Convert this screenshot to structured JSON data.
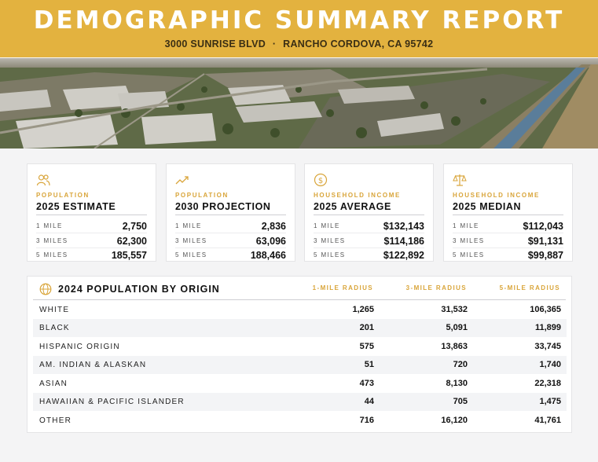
{
  "header": {
    "title": "DEMOGRAPHIC SUMMARY REPORT",
    "address": "3000 SUNRISE BLVD",
    "separator": "·",
    "city": "RANCHO CORDOVA, CA 95742"
  },
  "colors": {
    "accent": "#e3b23f",
    "label_gold": "#d9a53a",
    "dark": "#1b1b1b"
  },
  "cards": [
    {
      "icon": "people-icon",
      "category": "POPULATION",
      "heading": "2025 ESTIMATE",
      "rows": [
        {
          "label": "1 MILE",
          "value": "2,750"
        },
        {
          "label": "3 MILES",
          "value": "62,300"
        },
        {
          "label": "5 MILES",
          "value": "185,557"
        }
      ]
    },
    {
      "icon": "trend-up-icon",
      "category": "POPULATION",
      "heading": "2030 PROJECTION",
      "rows": [
        {
          "label": "1 MILE",
          "value": "2,836"
        },
        {
          "label": "3 MILES",
          "value": "63,096"
        },
        {
          "label": "5 MILES",
          "value": "188,466"
        }
      ]
    },
    {
      "icon": "dollar-icon",
      "category": "HOUSEHOLD INCOME",
      "heading": "2025 AVERAGE",
      "rows": [
        {
          "label": "1 MILE",
          "value": "$132,143"
        },
        {
          "label": "3 MILES",
          "value": "$114,186"
        },
        {
          "label": "5 MILES",
          "value": "$122,892"
        }
      ]
    },
    {
      "icon": "scale-icon",
      "category": "HOUSEHOLD INCOME",
      "heading": "2025 MEDIAN",
      "rows": [
        {
          "label": "1 MILE",
          "value": "$112,043"
        },
        {
          "label": "3 MILES",
          "value": "$91,131"
        },
        {
          "label": "5 MILES",
          "value": "$99,887"
        }
      ]
    }
  ],
  "origin_table": {
    "icon": "globe-icon",
    "title": "2024 POPULATION BY ORIGIN",
    "columns": [
      "1-MILE RADIUS",
      "3-MILE RADIUS",
      "5-MILE RADIUS"
    ],
    "rows": [
      {
        "name": "WHITE",
        "values": [
          "1,265",
          "31,532",
          "106,365"
        ]
      },
      {
        "name": "BLACK",
        "values": [
          "201",
          "5,091",
          "11,899"
        ]
      },
      {
        "name": "HISPANIC ORIGIN",
        "values": [
          "575",
          "13,863",
          "33,745"
        ]
      },
      {
        "name": "AM. INDIAN & ALASKAN",
        "values": [
          "51",
          "720",
          "1,740"
        ]
      },
      {
        "name": "ASIAN",
        "values": [
          "473",
          "8,130",
          "22,318"
        ]
      },
      {
        "name": "HAWAIIAN & PACIFIC ISLANDER",
        "values": [
          "44",
          "705",
          "1,475"
        ]
      },
      {
        "name": "OTHER",
        "values": [
          "716",
          "16,120",
          "41,761"
        ]
      }
    ]
  }
}
